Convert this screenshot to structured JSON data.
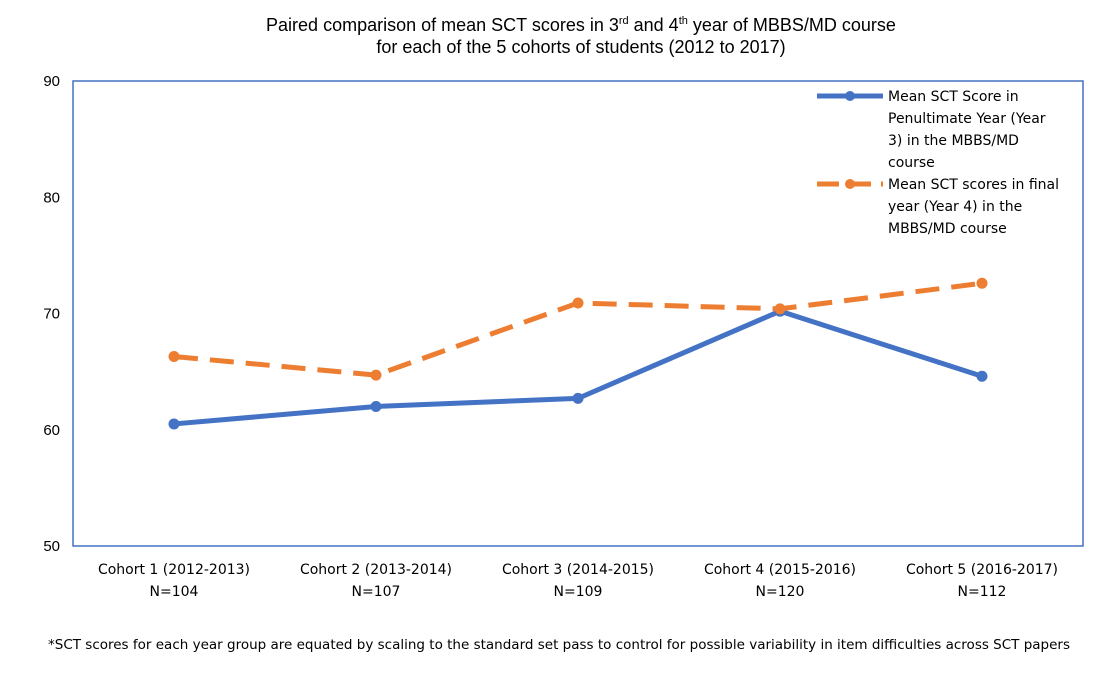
{
  "title": {
    "part1": "Paired comparison of mean SCT scores in 3",
    "sup1": "rd",
    "part2": " and 4",
    "sup2": "th",
    "part3": " year of  MBBS/MD course",
    "line2": "for each of the 5 cohorts of students (2012 to 2017)"
  },
  "footnote": "*SCT scores for each year group are equated by scaling to the standard set pass to control for possible variability in item difficulties across SCT papers",
  "chart_data": {
    "type": "line",
    "categories": [
      [
        "Cohort 1 (2012-2013)",
        "N=104"
      ],
      [
        "Cohort 2 (2013-2014)",
        "N=107"
      ],
      [
        "Cohort 3 (2014-2015)",
        "N=109"
      ],
      [
        "Cohort 4 (2015-2016)",
        "N=120"
      ],
      [
        "Cohort 5 (2016-2017)",
        "N=112"
      ]
    ],
    "ylim": [
      50,
      90
    ],
    "yticks": [
      50,
      60,
      70,
      80,
      90
    ],
    "grid": false,
    "legend_position": "top-right",
    "series": [
      {
        "name_lines": [
          "Mean SCT Score in",
          "Penultimate Year (Year",
          "3) in the MBBS/MD",
          "course"
        ],
        "values": [
          60.5,
          62.0,
          62.7,
          70.2,
          64.6
        ],
        "color": "#4472C4",
        "style": "solid"
      },
      {
        "name_lines": [
          "Mean SCT scores in final",
          "year (Year 4) in the",
          "MBBS/MD course"
        ],
        "values": [
          66.3,
          64.7,
          70.9,
          70.4,
          72.6
        ],
        "color": "#ED7D31",
        "style": "dashed"
      }
    ]
  }
}
